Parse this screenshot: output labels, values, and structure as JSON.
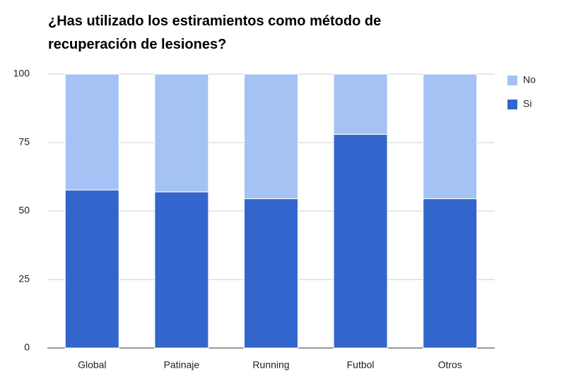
{
  "chart_data": {
    "type": "stacked_bar",
    "title": "¿Has utilizado los estiramientos como método de recuperación de lesiones?",
    "categories": [
      "Global",
      "Patinaje",
      "Running",
      "Futbol",
      "Otros"
    ],
    "series": [
      {
        "name": "Si",
        "color": "#3366cc",
        "values": [
          57.7,
          57,
          54.5,
          78,
          54.5
        ]
      },
      {
        "name": "No",
        "color": "#a4c2f4",
        "values": [
          42.3,
          43,
          45.5,
          22,
          45.5
        ]
      }
    ],
    "ylim": [
      0,
      100
    ],
    "yticks": [
      0,
      25,
      50,
      75,
      100
    ],
    "grid": true,
    "legend": "right"
  }
}
